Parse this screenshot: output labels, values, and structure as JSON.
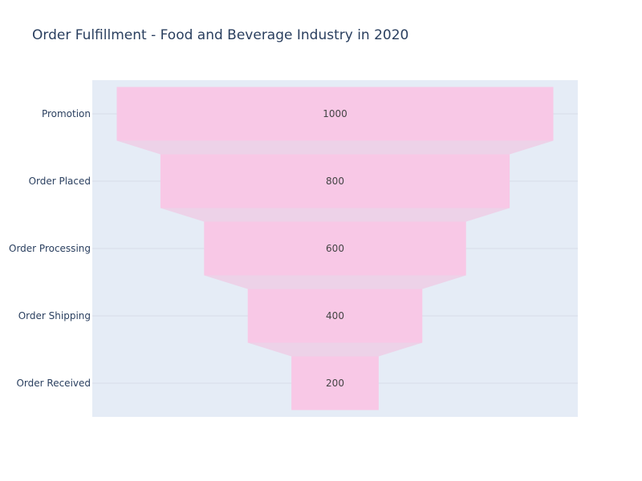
{
  "chart_data": {
    "type": "funnel",
    "title": "Order Fulfillment - Food and Beverage Industry in 2020",
    "categories": [
      "Promotion",
      "Order Placed",
      "Order Processing",
      "Order Shipping",
      "Order Received"
    ],
    "values": [
      1000,
      800,
      600,
      400,
      200
    ],
    "value_labels": [
      "1000",
      "800",
      "600",
      "400",
      "200"
    ],
    "xlabel": "",
    "ylabel": "",
    "grid": true,
    "legend": "none",
    "colors": {
      "bar": "#f8c8e6",
      "connector": "#edd2e8",
      "plot_background": "#e5ecf6",
      "gridline": "#d8dbe8",
      "text": "#2a3f5f"
    }
  }
}
